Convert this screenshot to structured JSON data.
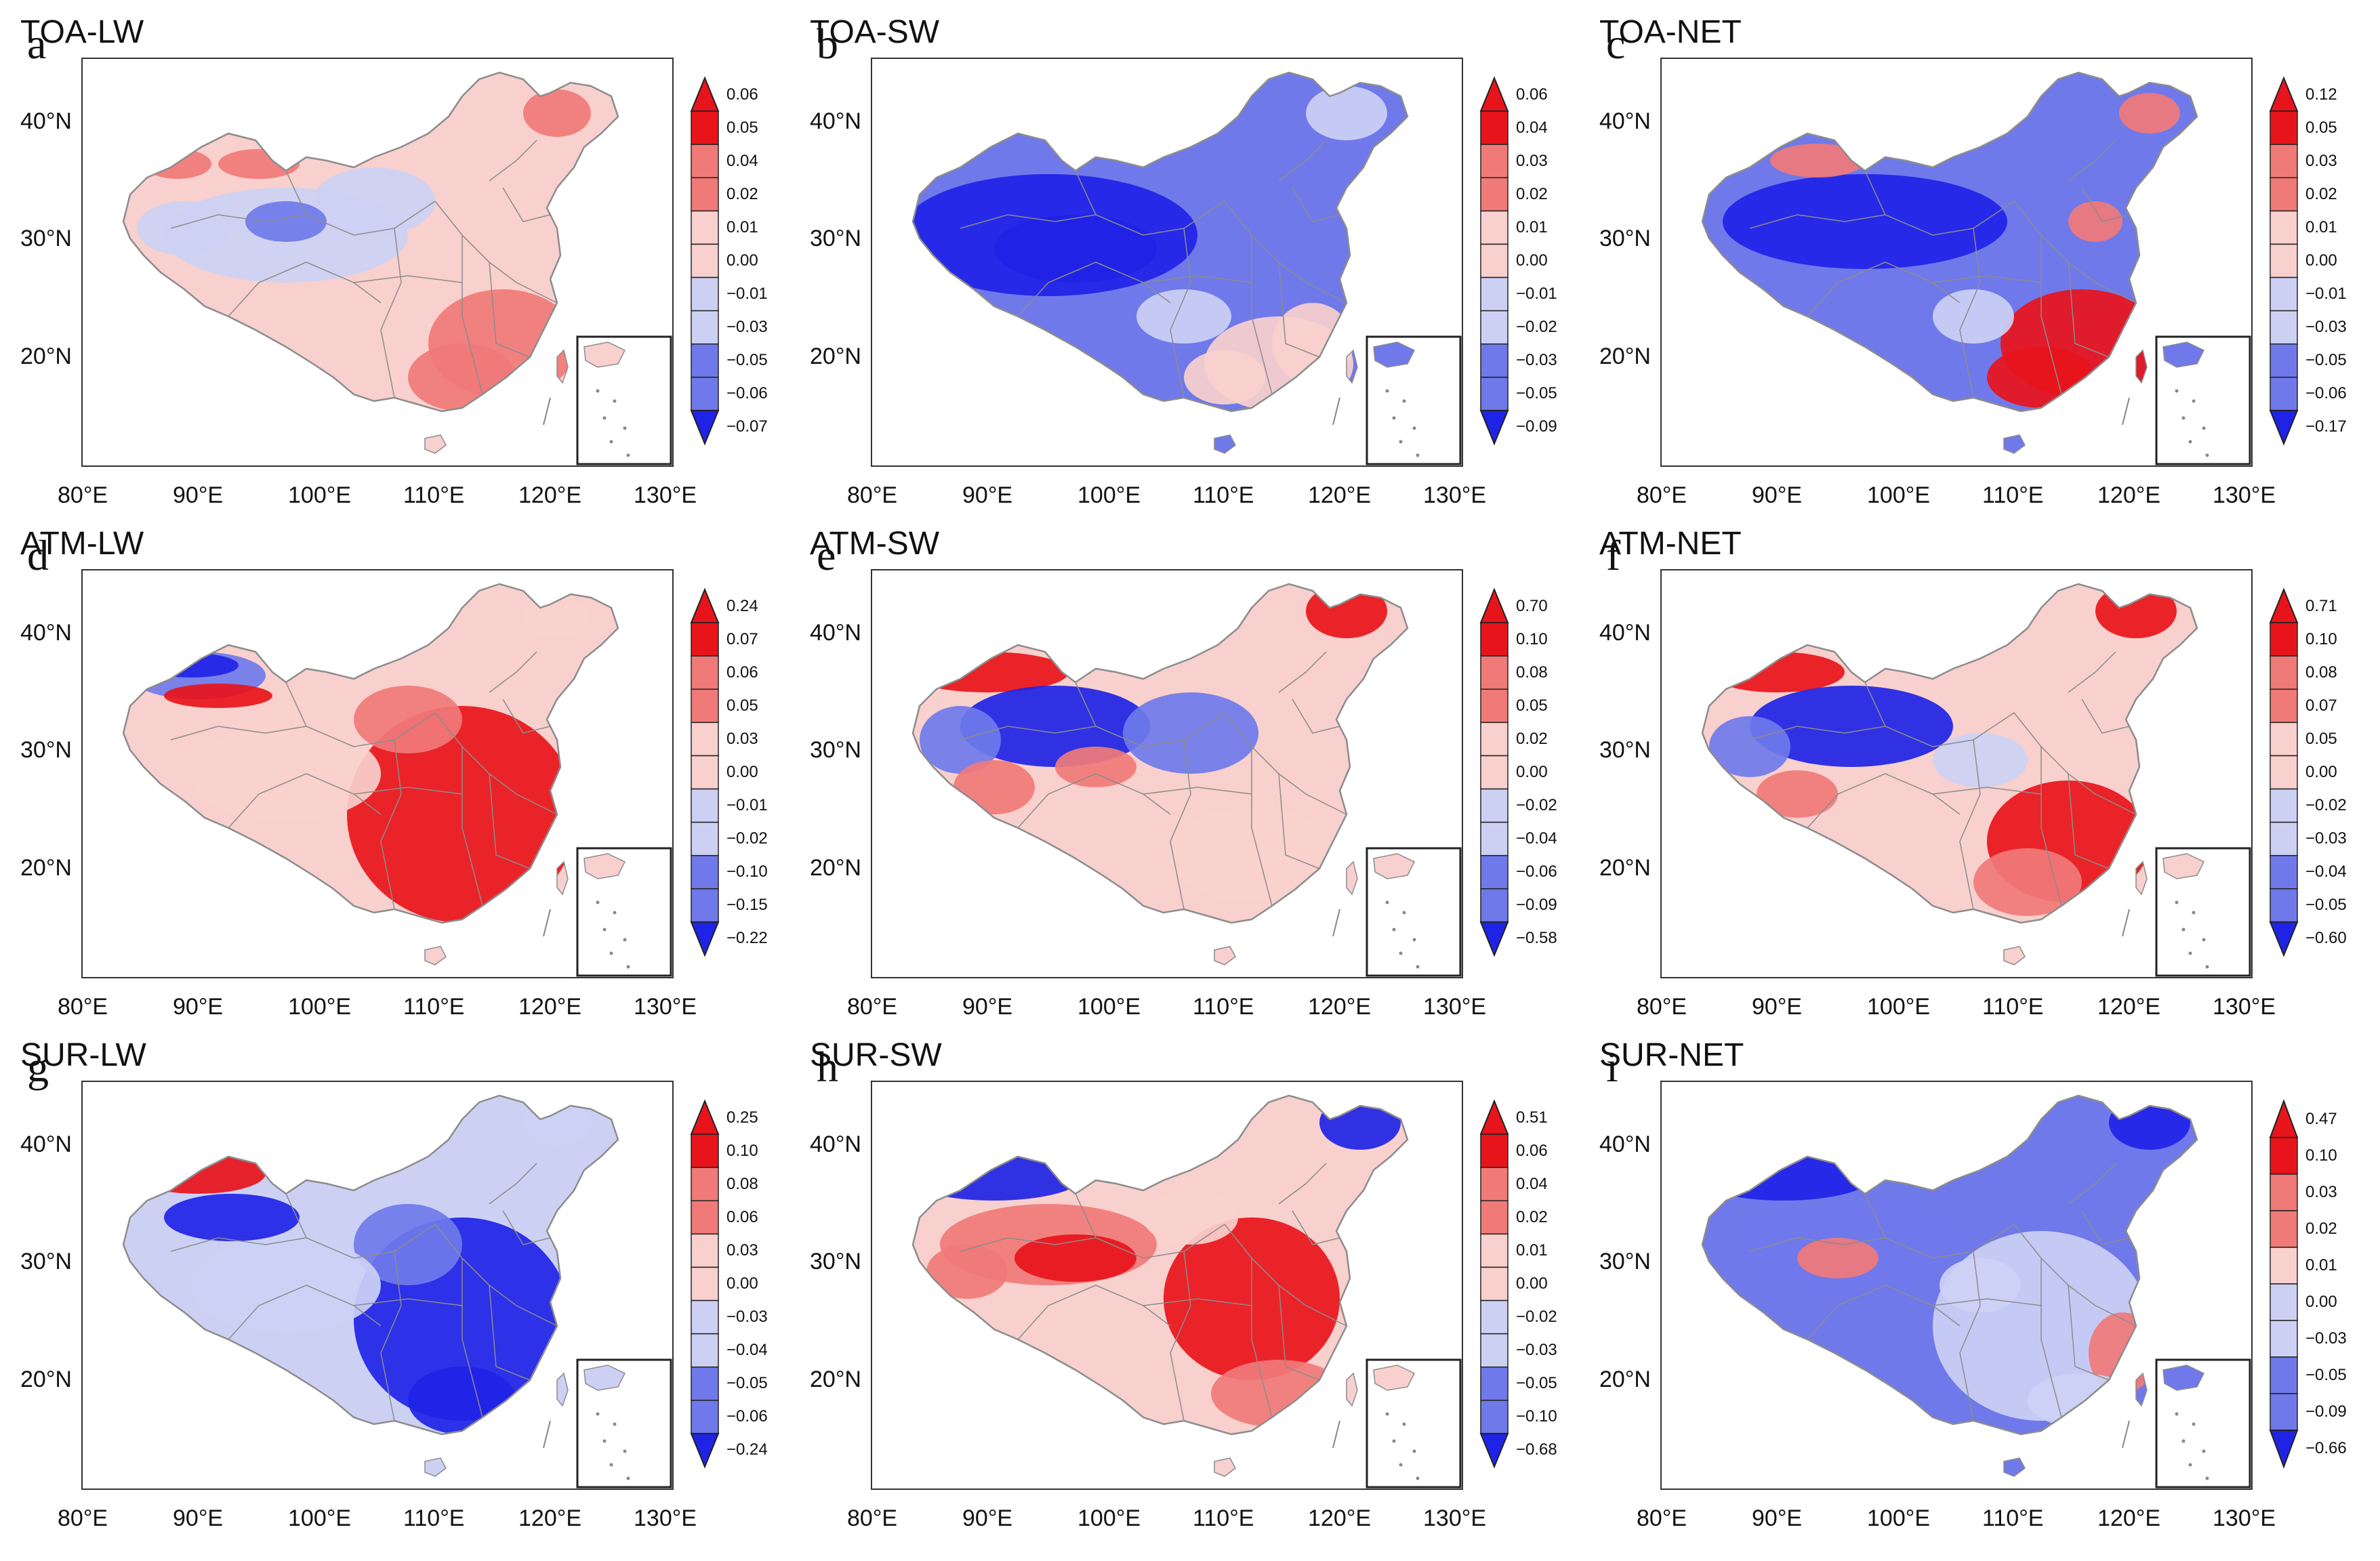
{
  "panels": [
    {
      "title": "TOA-LW",
      "letter": "a",
      "pattern": "lw",
      "levels": [
        "0.06",
        "0.05",
        "0.04",
        "0.02",
        "0.01",
        "0.00",
        "−0.01",
        "−0.03",
        "−0.05",
        "−0.06",
        "−0.07"
      ]
    },
    {
      "title": "TOA-SW",
      "letter": "b",
      "pattern": "sw",
      "levels": [
        "0.06",
        "0.04",
        "0.03",
        "0.02",
        "0.01",
        "0.00",
        "−0.01",
        "−0.02",
        "−0.03",
        "−0.05",
        "−0.09"
      ]
    },
    {
      "title": "TOA-NET",
      "letter": "c",
      "pattern": "net",
      "levels": [
        "0.12",
        "0.05",
        "0.03",
        "0.02",
        "0.01",
        "0.00",
        "−0.01",
        "−0.03",
        "−0.05",
        "−0.06",
        "−0.17"
      ]
    },
    {
      "title": "ATM-LW",
      "letter": "d",
      "pattern": "atmlw",
      "levels": [
        "0.24",
        "0.07",
        "0.06",
        "0.05",
        "0.03",
        "0.00",
        "−0.01",
        "−0.02",
        "−0.10",
        "−0.15",
        "−0.22"
      ]
    },
    {
      "title": "ATM-SW",
      "letter": "e",
      "pattern": "mixed",
      "levels": [
        "0.70",
        "0.10",
        "0.08",
        "0.05",
        "0.02",
        "0.00",
        "−0.02",
        "−0.04",
        "−0.06",
        "−0.09",
        "−0.58"
      ]
    },
    {
      "title": "ATM-NET",
      "letter": "f",
      "pattern": "mixed2",
      "levels": [
        "0.71",
        "0.10",
        "0.08",
        "0.07",
        "0.05",
        "0.00",
        "−0.02",
        "−0.03",
        "−0.04",
        "−0.05",
        "−0.60"
      ]
    },
    {
      "title": "SUR-LW",
      "letter": "g",
      "pattern": "surlw",
      "levels": [
        "0.25",
        "0.10",
        "0.08",
        "0.06",
        "0.03",
        "0.00",
        "−0.03",
        "−0.04",
        "−0.05",
        "−0.06",
        "−0.24"
      ]
    },
    {
      "title": "SUR-SW",
      "letter": "h",
      "pattern": "sursw",
      "levels": [
        "0.51",
        "0.06",
        "0.04",
        "0.02",
        "0.01",
        "0.00",
        "−0.02",
        "−0.03",
        "−0.05",
        "−0.10",
        "−0.68"
      ]
    },
    {
      "title": "SUR-NET",
      "letter": "i",
      "pattern": "surnet",
      "levels": [
        "0.47",
        "0.10",
        "0.03",
        "0.02",
        "0.01",
        "0.00",
        "−0.03",
        "−0.05",
        "−0.09",
        "−0.66"
      ]
    }
  ],
  "axes": {
    "lat_labels": [
      "40°N",
      "30°N",
      "20°N"
    ],
    "lon_labels": [
      "80°E",
      "90°E",
      "100°E",
      "110°E",
      "120°E",
      "130°E"
    ]
  },
  "colors": {
    "red": "#e8141b",
    "red_mid": "#f07a78",
    "red_light": "#f8d0cd",
    "blue": "#1f23e6",
    "blue_mid": "#6f79ea",
    "blue_light": "#ccd1f4",
    "border": "#8c8c8c"
  }
}
